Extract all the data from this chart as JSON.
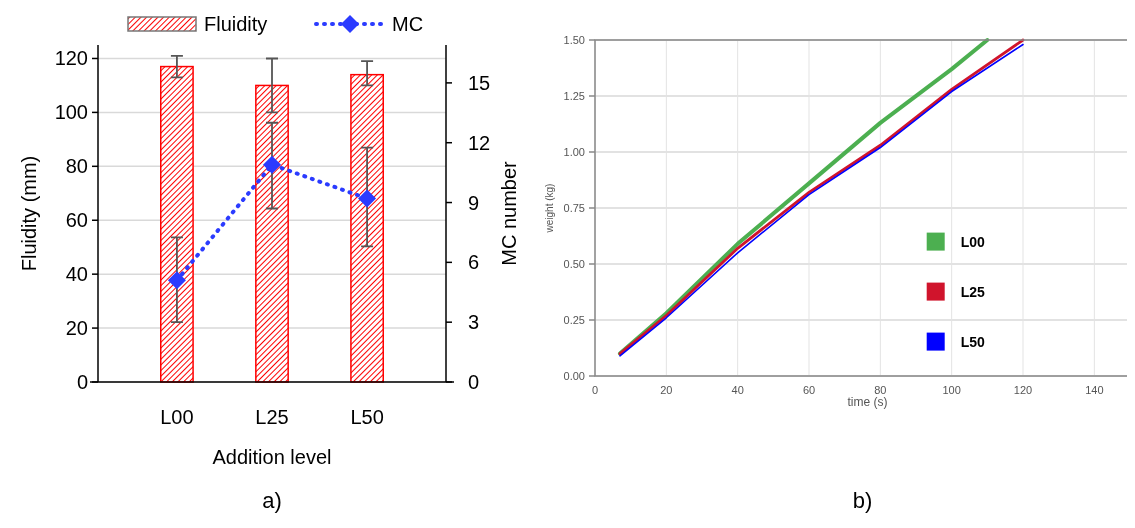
{
  "chart_data": [
    {
      "type": "bar",
      "xlabel": "Addition level",
      "ylabel": "Fluidity (mm)",
      "y2label": "MC number",
      "categories": [
        "L00",
        "L25",
        "L50"
      ],
      "series": [
        {
          "name": "Fluidity",
          "color": "#ff0000",
          "values": [
            117,
            110,
            114
          ],
          "errors": [
            [
              113,
              121
            ],
            [
              100,
              120
            ],
            [
              110,
              119
            ]
          ]
        },
        {
          "name": "MC",
          "type": "line",
          "axis": "y2",
          "color": "#2b3bff",
          "marker": "diamond",
          "line_style": "dotted",
          "values": [
            5.1,
            10.9,
            9.2
          ],
          "errors": [
            [
              3.0,
              7.25
            ],
            [
              8.7,
              13.0
            ],
            [
              6.8,
              11.75
            ]
          ]
        }
      ],
      "ylim": [
        0,
        125
      ],
      "yticks": [
        0,
        20,
        40,
        60,
        80,
        100,
        120
      ],
      "y2lim": [
        0,
        16.9
      ],
      "y2ticks": [
        0,
        3,
        6,
        9,
        12,
        15
      ],
      "grid": "y",
      "legend": "top",
      "annotations": [
        "a)"
      ]
    },
    {
      "type": "line",
      "xlabel": "time (s)",
      "ylabel": "weight (kg)",
      "series": [
        {
          "name": "L00",
          "color": "#4caf50",
          "x": [
            7,
            20,
            40,
            60,
            80,
            100,
            110
          ],
          "values": [
            0.1,
            0.28,
            0.59,
            0.86,
            1.13,
            1.37,
            1.5
          ]
        },
        {
          "name": "L25",
          "color": "#d0142c",
          "x": [
            7,
            20,
            40,
            60,
            80,
            100,
            120
          ],
          "values": [
            0.1,
            0.27,
            0.57,
            0.82,
            1.03,
            1.28,
            1.5
          ]
        },
        {
          "name": "L50",
          "color": "#0000ff",
          "x": [
            7,
            20,
            40,
            60,
            80,
            100,
            120
          ],
          "values": [
            0.09,
            0.26,
            0.55,
            0.81,
            1.02,
            1.27,
            1.48
          ]
        }
      ],
      "xlim": [
        0,
        150
      ],
      "xticks": [
        0,
        20,
        40,
        60,
        80,
        100,
        120,
        140
      ],
      "ylim": [
        0,
        1.5
      ],
      "yticks": [
        {
          "value": 0,
          "label": "0.00"
        },
        {
          "value": 0.25,
          "label": "0.25"
        },
        {
          "value": 0.5,
          "label": "0.50"
        },
        {
          "value": 0.75,
          "label": "0.75"
        },
        {
          "value": 1,
          "label": "1.00"
        },
        {
          "value": 1.25,
          "label": "1.25"
        },
        {
          "value": 1.5,
          "label": "1.50"
        }
      ],
      "grid": true,
      "legend": "right",
      "annotations": [
        "b)"
      ]
    }
  ]
}
